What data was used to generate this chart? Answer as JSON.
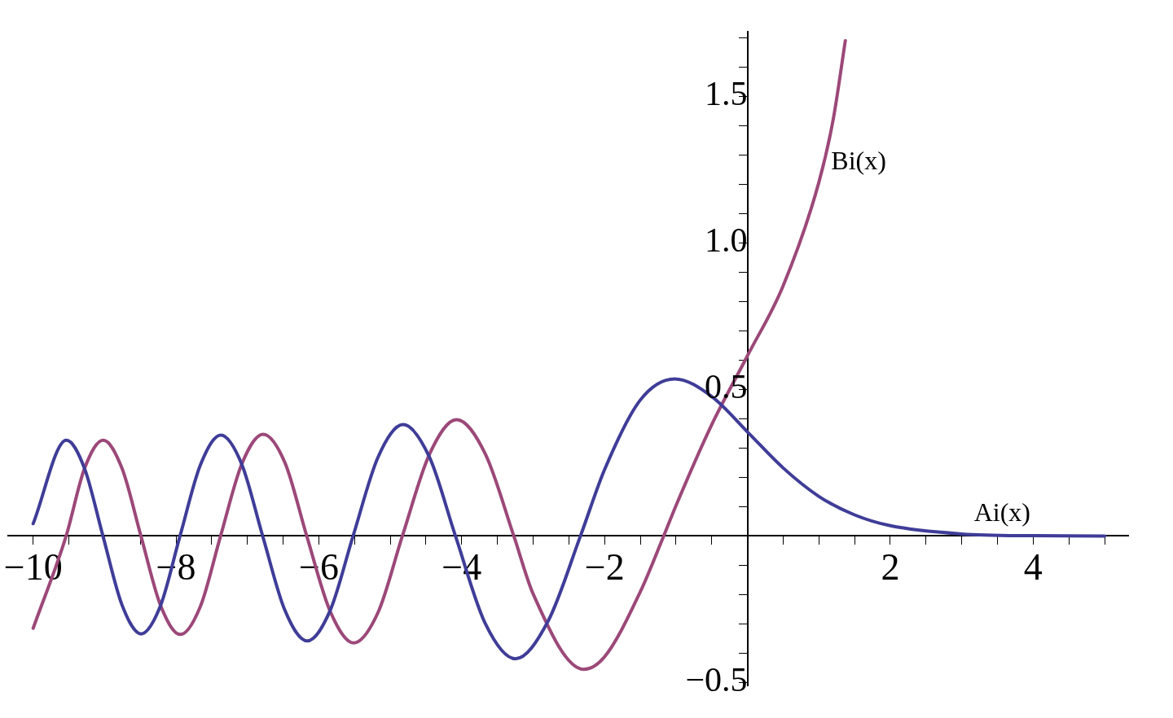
{
  "chart_data": {
    "type": "line",
    "xlim": [
      -10.35,
      5.33
    ],
    "ylim": [
      -0.51,
      1.72
    ],
    "xticks": [
      {
        "value": -10,
        "label": "−10"
      },
      {
        "value": -9.5,
        "label": null
      },
      {
        "value": -9,
        "label": null
      },
      {
        "value": -8.5,
        "label": null
      },
      {
        "value": -8,
        "label": "−8"
      },
      {
        "value": -7.5,
        "label": null
      },
      {
        "value": -7,
        "label": null
      },
      {
        "value": -6.5,
        "label": null
      },
      {
        "value": -6,
        "label": "−6"
      },
      {
        "value": -5.5,
        "label": null
      },
      {
        "value": -5,
        "label": null
      },
      {
        "value": -4.5,
        "label": null
      },
      {
        "value": -4,
        "label": "−4"
      },
      {
        "value": -3.5,
        "label": null
      },
      {
        "value": -3,
        "label": null
      },
      {
        "value": -2.5,
        "label": null
      },
      {
        "value": -2,
        "label": "−2"
      },
      {
        "value": -1.5,
        "label": null
      },
      {
        "value": -1,
        "label": null
      },
      {
        "value": -0.5,
        "label": null
      },
      {
        "value": 0.5,
        "label": null
      },
      {
        "value": 1,
        "label": null
      },
      {
        "value": 1.5,
        "label": null
      },
      2,
      {
        "value": 2.5,
        "label": null
      },
      {
        "value": 3,
        "label": null
      },
      {
        "value": 3.5,
        "label": null
      },
      4,
      {
        "value": 4.5,
        "label": null
      },
      {
        "value": 5,
        "label": null
      }
    ],
    "yticks": [
      {
        "value": -0.5,
        "label": "−0.5"
      },
      {
        "value": -0.4,
        "label": null
      },
      {
        "value": -0.3,
        "label": null
      },
      {
        "value": -0.2,
        "label": null
      },
      {
        "value": -0.1,
        "label": null
      },
      {
        "value": 0.1,
        "label": null
      },
      {
        "value": 0.2,
        "label": null
      },
      {
        "value": 0.3,
        "label": null
      },
      {
        "value": 0.4,
        "label": null
      },
      0.5,
      {
        "value": 0.6,
        "label": null
      },
      {
        "value": 0.7,
        "label": null
      },
      {
        "value": 0.8,
        "label": null
      },
      {
        "value": 0.9,
        "label": null
      },
      {
        "value": 1,
        "label": "1.0"
      },
      {
        "value": 1.1,
        "label": null
      },
      {
        "value": 1.2,
        "label": null
      },
      {
        "value": 1.3,
        "label": null
      },
      {
        "value": 1.4,
        "label": null
      },
      1.5,
      {
        "value": 1.6,
        "label": null
      },
      {
        "value": 1.7,
        "label": null
      }
    ],
    "grid": false,
    "legend": false,
    "marker": "none",
    "line_style": "solid",
    "series": [
      {
        "name": "Ai(x)",
        "color": "#3f3d98",
        "x": [
          -10,
          -9.535,
          -9.28,
          -9.023,
          -8.755,
          -8.488,
          -8.216,
          -7.944,
          -7.658,
          -7.372,
          -7.08,
          -6.787,
          -6.475,
          -6.163,
          -5.842,
          -5.521,
          -5.17,
          -4.82,
          -4.454,
          -4.088,
          -3.668,
          -3.248,
          -2.79,
          -2.338,
          -2,
          -1.5,
          -1.019,
          -0.5,
          0,
          0.5,
          1,
          1.5,
          2,
          3,
          4,
          5
        ],
        "values": [
          0.042,
          0.327,
          0.23,
          0,
          -0.236,
          -0.334,
          -0.237,
          0,
          0.243,
          0.344,
          0.245,
          0,
          -0.254,
          -0.358,
          -0.254,
          0,
          0.27,
          0.38,
          0.27,
          0,
          -0.3,
          -0.419,
          -0.29,
          0,
          0.227,
          0.464,
          0.536,
          0.476,
          0.355,
          0.232,
          0.135,
          0.072,
          0.035,
          0.007,
          0.001,
          0
        ]
      },
      {
        "name": "Bi(x)",
        "color": "#9c4879",
        "x": [
          -10,
          -9.538,
          -9.28,
          -9.02,
          -8.755,
          -8.491,
          -8.216,
          -7.94,
          -7.658,
          -7.376,
          -7.08,
          -6.781,
          -6.475,
          -6.17,
          -5.84,
          -5.513,
          -5.17,
          -4.831,
          -4.45,
          -4.073,
          -3.67,
          -3.271,
          -3,
          -2.294,
          -2,
          -1.5,
          -1.173,
          -1,
          -0.5,
          0,
          0.5,
          1,
          1.2,
          1.37
        ],
        "values": [
          -0.315,
          0,
          0.231,
          0.327,
          0.23,
          0,
          -0.237,
          -0.336,
          -0.24,
          0,
          0.245,
          0.347,
          0.25,
          0,
          -0.258,
          -0.365,
          -0.26,
          0,
          0.28,
          0.397,
          0.28,
          0,
          -0.198,
          -0.455,
          -0.412,
          -0.19,
          0,
          0.104,
          0.38,
          0.615,
          0.854,
          1.207,
          1.421,
          1.69
        ]
      }
    ]
  }
}
